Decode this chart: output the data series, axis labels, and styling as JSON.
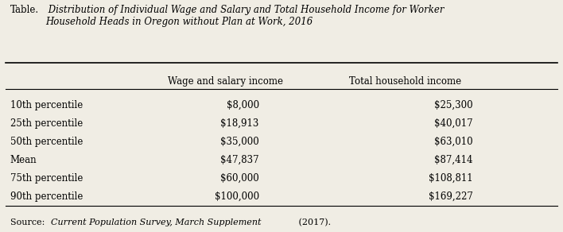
{
  "title_prefix": "Table.",
  "title_italic": " Distribution of Individual Wage and Salary and Total Household Income for Worker\nHousehold Heads in Oregon without Plan at Work, 2016",
  "col_headers": [
    "",
    "Wage and salary income",
    "Total household income"
  ],
  "rows": [
    [
      "10th percentile",
      "$8,000",
      "$25,300"
    ],
    [
      "25th percentile",
      "$18,913",
      "$40,017"
    ],
    [
      "50th percentile",
      "$35,000",
      "$63,010"
    ],
    [
      "Mean",
      "$47,837",
      "$87,414"
    ],
    [
      "75th percentile",
      "$60,000",
      "$108,811"
    ],
    [
      "90th percentile",
      "$100,000",
      "$169,227"
    ]
  ],
  "source_normal": "Source: ",
  "source_italic": "Current Population Survey, March Supplement",
  "source_end": " (2017).",
  "bg_color": "#f0ede4",
  "text_color": "#000000",
  "line_color": "#000000"
}
